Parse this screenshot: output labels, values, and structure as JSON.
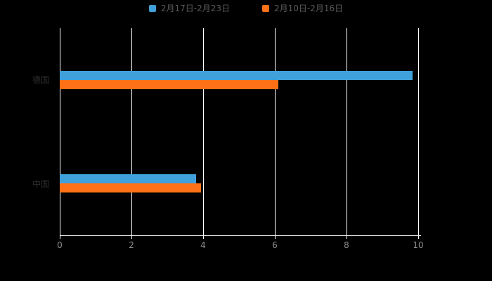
{
  "chart_data": {
    "type": "bar",
    "orientation": "horizontal",
    "title": "",
    "xlabel": "",
    "ylabel": "",
    "categories": [
      "德国",
      "中国"
    ],
    "series": [
      {
        "name": "2月17日-2月23日",
        "color": "#3fa0da",
        "values": [
          9.85,
          3.8
        ]
      },
      {
        "name": "2月10日-2月16日",
        "color": "#ff7116",
        "values": [
          6.1,
          3.95
        ]
      }
    ],
    "xlim": [
      0,
      10
    ],
    "x_ticks": [
      0,
      2,
      4,
      6,
      8,
      10
    ],
    "grid": true,
    "legend_position": "top"
  },
  "axis": {
    "tick_labels": [
      "0",
      "2",
      "4",
      "6",
      "8",
      "10"
    ]
  },
  "colors": {
    "background": "#000000",
    "grid_line": "#ffffff",
    "axis_text": "#8c8c8c",
    "category_text": "#2e2e2e",
    "legend_text": "#5a5a5a"
  }
}
